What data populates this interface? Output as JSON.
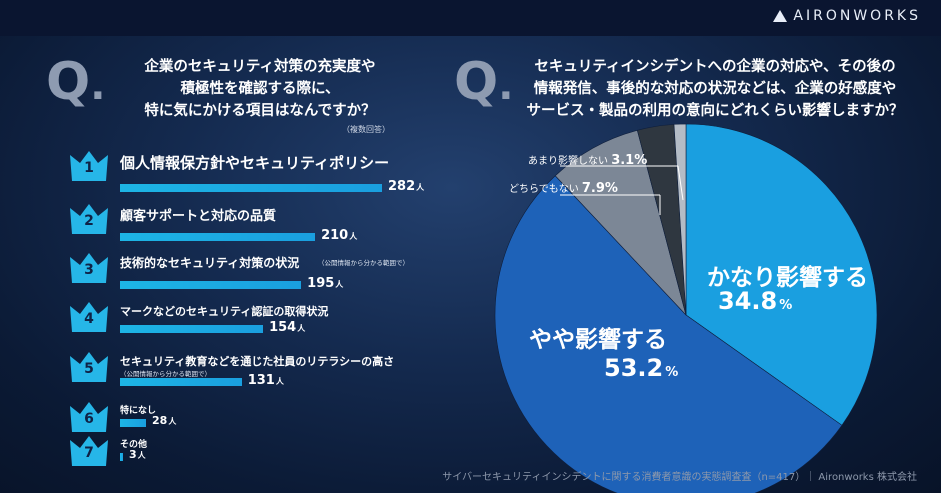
{
  "brand": "AIRONWORKS",
  "left_q": {
    "mark": "Q",
    "title_lines": [
      "企業のセキュリティ対策の充実度や",
      "積極性を確認する際に、",
      "特に気にかける項目はなんですか？"
    ],
    "note": "（複数回答）"
  },
  "ranking": [
    {
      "rank": "1",
      "label": "個人情報保方針やセキュリティポリシー",
      "sub": "",
      "value": "282",
      "unit": "人",
      "num": 282
    },
    {
      "rank": "2",
      "label": "顧客サポートと対応の品質",
      "sub": "",
      "value": "210",
      "unit": "人",
      "num": 210
    },
    {
      "rank": "3",
      "label": "技術的なセキュリティ対策の状況",
      "sub": "（公開情報から分かる範囲で）",
      "value": "195",
      "unit": "人",
      "num": 195
    },
    {
      "rank": "4",
      "label": "マークなどのセキュリティ認証の取得状況",
      "sub": "",
      "value": "154",
      "unit": "人",
      "num": 154
    },
    {
      "rank": "5",
      "label": "セキュリティ教育などを通じた社員のリテラシーの高さ",
      "sub": "（公開情報から分かる範囲で）",
      "value": "131",
      "unit": "人",
      "num": 131
    },
    {
      "rank": "6",
      "label": "特になし",
      "sub": "",
      "value": "28",
      "unit": "人",
      "num": 28
    },
    {
      "rank": "7",
      "label": "その他",
      "sub": "",
      "value": "3",
      "unit": "人",
      "num": 3
    }
  ],
  "right_q": {
    "mark": "Q",
    "title_lines": [
      "セキュリティインシデントへの企業の対応や、その後の",
      "情報発信、事後的な対応の状況などは、企業の好感度や",
      "サービス・製品の利用の意向にどれくらい影響しますか？"
    ]
  },
  "chart_data": {
    "type": "pie",
    "slices": [
      {
        "label": "かなり影響する",
        "value": 34.8,
        "display": "34.8",
        "unit": "%",
        "color": "#1a9fe0"
      },
      {
        "label": "やや影響する",
        "value": 53.2,
        "display": "53.2",
        "unit": "%",
        "color": "#1e62b8"
      },
      {
        "label": "どちらでもない",
        "value": 7.9,
        "display": "7.9",
        "unit": "%",
        "color": "#7c8796"
      },
      {
        "label": "あまり影響しない",
        "value": 3.1,
        "display": "3.1",
        "unit": "%",
        "color": "#2f3740"
      },
      {
        "label": "",
        "value": 1.0,
        "display": "",
        "unit": "",
        "color": "#b4bcc6"
      }
    ]
  },
  "footer": "サイバーセキュリティインシデントに関する消費者意識の実態調査査（n=417）｜ Aironworks 株式会社"
}
